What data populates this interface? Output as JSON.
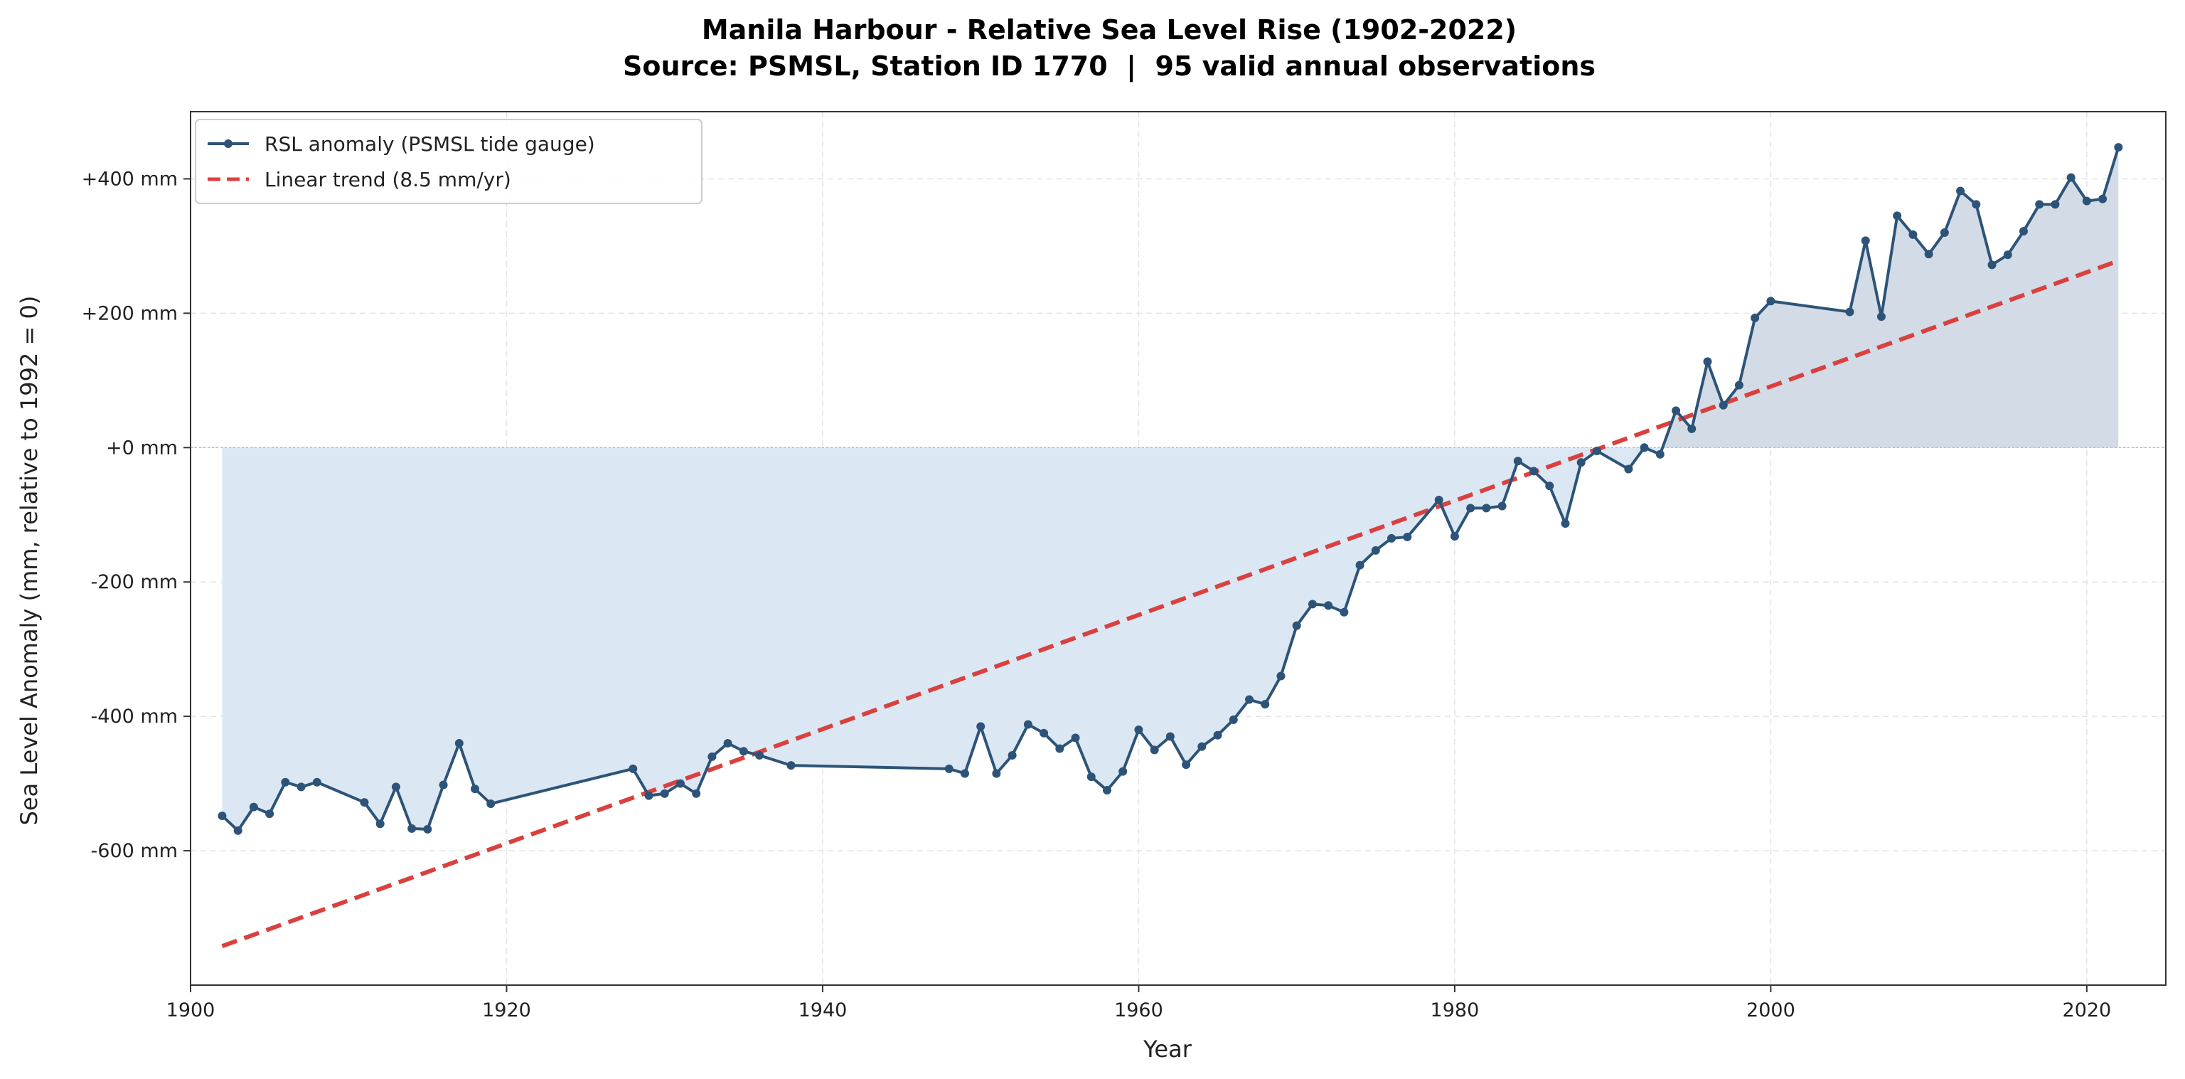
{
  "chart_data": {
    "type": "line",
    "title": "Manila Harbour - Relative Sea Level Rise (1902-2022)",
    "subtitle": "Source: PSMSL, Station ID 1770  |  95 valid annual observations",
    "xlabel": "Year",
    "ylabel": "Sea Level Anomaly (mm, relative to 1992 = 0)",
    "xlim": [
      1900,
      2025
    ],
    "ylim": [
      -800,
      500
    ],
    "xticks": [
      1900,
      1920,
      1940,
      1960,
      1980,
      2000,
      2020
    ],
    "xtick_labels": [
      "1900",
      "1920",
      "1940",
      "1960",
      "1980",
      "2000",
      "2020"
    ],
    "yticks": [
      400,
      200,
      0,
      -200,
      -400,
      -600
    ],
    "ytick_labels": [
      "+400 mm",
      "+200 mm",
      "+0 mm",
      "-200 mm",
      "-400 mm",
      "-600 mm"
    ],
    "grid": true,
    "legend_position": "top-left",
    "colors": {
      "series": "#2d5478",
      "trend": "#d9413f",
      "fill_negative": "#dbe8f4",
      "fill_positive": "#d3dce6",
      "grid": "#e3e3e3"
    },
    "series": [
      {
        "name": "RSL anomaly (PSMSL tide gauge)",
        "x": [
          1902,
          1903,
          1904,
          1905,
          1906,
          1907,
          1908,
          1911,
          1912,
          1913,
          1914,
          1915,
          1916,
          1917,
          1918,
          1919,
          1928,
          1929,
          1930,
          1931,
          1932,
          1933,
          1934,
          1935,
          1936,
          1938,
          1948,
          1949,
          1950,
          1951,
          1952,
          1953,
          1954,
          1955,
          1956,
          1957,
          1958,
          1959,
          1960,
          1961,
          1962,
          1963,
          1964,
          1965,
          1966,
          1967,
          1968,
          1969,
          1970,
          1971,
          1972,
          1973,
          1974,
          1975,
          1976,
          1977,
          1979,
          1980,
          1981,
          1982,
          1983,
          1984,
          1985,
          1986,
          1987,
          1988,
          1989,
          1991,
          1992,
          1993,
          1994,
          1995,
          1996,
          1997,
          1998,
          1999,
          2000,
          2005,
          2006,
          2007,
          2008,
          2009,
          2010,
          2011,
          2012,
          2013,
          2014,
          2015,
          2016,
          2017,
          2018,
          2019,
          2020,
          2021,
          2022
        ],
        "y": [
          -548,
          -570,
          -535,
          -545,
          -498,
          -505,
          -498,
          -528,
          -560,
          -505,
          -567,
          -568,
          -502,
          -440,
          -508,
          -530,
          -478,
          -518,
          -515,
          -500,
          -515,
          -460,
          -440,
          -452,
          -458,
          -473,
          -478,
          -485,
          -415,
          -485,
          -458,
          -412,
          -425,
          -448,
          -432,
          -490,
          -510,
          -482,
          -420,
          -450,
          -430,
          -472,
          -445,
          -428,
          -405,
          -375,
          -382,
          -340,
          -265,
          -233,
          -235,
          -245,
          -175,
          -153,
          -135,
          -133,
          -78,
          -132,
          -90,
          -90,
          -87,
          -20,
          -35,
          -57,
          -113,
          -22,
          -5,
          -32,
          0,
          -10,
          55,
          28,
          128,
          63,
          93,
          193,
          218,
          202,
          308,
          195,
          345,
          317,
          288,
          320,
          382,
          362,
          272,
          287,
          322,
          362,
          362,
          402,
          367,
          370,
          447
        ]
      },
      {
        "name": "Linear trend (8.5 mm/yr)",
        "x": [
          1902,
          2022
        ],
        "y": [
          -742,
          278
        ]
      }
    ]
  }
}
